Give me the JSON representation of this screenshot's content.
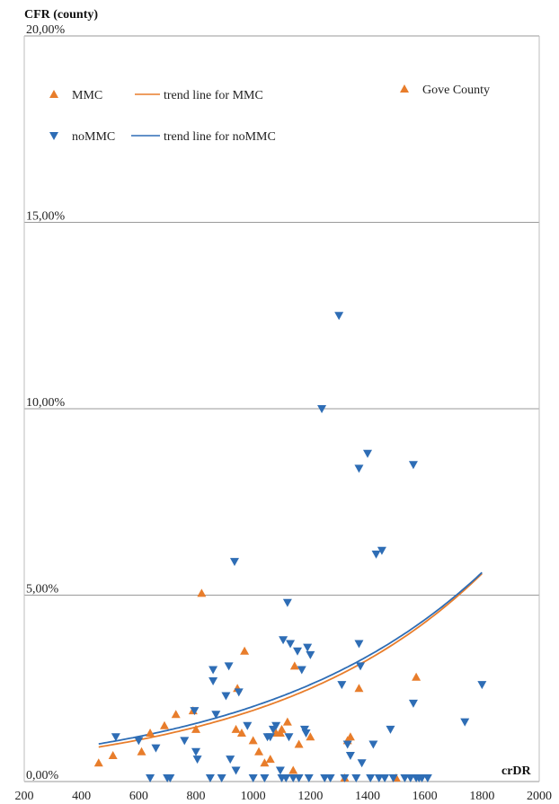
{
  "chart_data": {
    "type": "scatter",
    "ylabel": "CFR (county)",
    "xlabel": "crDR",
    "xlim": [
      200,
      2000
    ],
    "ylim": [
      0,
      20
    ],
    "x_ticks": [
      {
        "value": 200,
        "label": "200"
      },
      {
        "value": 400,
        "label": "400"
      },
      {
        "value": 600,
        "label": "600"
      },
      {
        "value": 800,
        "label": "800"
      },
      {
        "value": 1000,
        "label": "1000"
      },
      {
        "value": 1200,
        "label": "1200"
      },
      {
        "value": 1400,
        "label": "1400"
      },
      {
        "value": 1600,
        "label": "1600"
      },
      {
        "value": 1800,
        "label": "1800"
      },
      {
        "value": 2000,
        "label": "2000"
      }
    ],
    "y_ticks": [
      {
        "value": 0,
        "label": "0,00%"
      },
      {
        "value": 5,
        "label": "5,00%"
      },
      {
        "value": 10,
        "label": "10,00%"
      },
      {
        "value": 15,
        "label": "15,00%"
      },
      {
        "value": 20,
        "label": "20,00%"
      }
    ],
    "grid": "horizontal",
    "legend": [
      {
        "label": "MMC",
        "series": "MMC",
        "kind": "marker"
      },
      {
        "label": "trend line for MMC",
        "series": "MMC",
        "kind": "line"
      },
      {
        "label": "noMMC",
        "series": "noMMC",
        "kind": "marker"
      },
      {
        "label": "trend line for noMMC",
        "series": "noMMC",
        "kind": "line"
      },
      {
        "label": "Gove County",
        "series": "MMC",
        "kind": "marker"
      }
    ],
    "series": [
      {
        "name": "MMC",
        "marker": "triangle-up",
        "color": "#E87D2B",
        "points": [
          [
            460,
            0.5
          ],
          [
            510,
            0.7
          ],
          [
            610,
            0.8
          ],
          [
            640,
            1.3
          ],
          [
            690,
            1.5
          ],
          [
            730,
            1.8
          ],
          [
            790,
            1.9
          ],
          [
            800,
            1.4
          ],
          [
            820,
            5.05
          ],
          [
            940,
            1.4
          ],
          [
            945,
            2.5
          ],
          [
            960,
            1.3
          ],
          [
            970,
            3.5
          ],
          [
            1000,
            1.1
          ],
          [
            1020,
            0.8
          ],
          [
            1040,
            0.5
          ],
          [
            1060,
            0.6
          ],
          [
            1080,
            1.3
          ],
          [
            1095,
            1.3
          ],
          [
            1100,
            1.4
          ],
          [
            1120,
            1.6
          ],
          [
            1140,
            0.3
          ],
          [
            1145,
            3.1
          ],
          [
            1160,
            1.0
          ],
          [
            1200,
            1.2
          ],
          [
            1320,
            0.05
          ],
          [
            1330,
            1.1
          ],
          [
            1340,
            1.2
          ],
          [
            1370,
            2.5
          ],
          [
            1500,
            0.05
          ],
          [
            1570,
            2.8
          ]
        ]
      },
      {
        "name": "noMMC",
        "marker": "triangle-down",
        "color": "#2E6DB5",
        "points": [
          [
            520,
            1.2
          ],
          [
            600,
            1.1
          ],
          [
            640,
            0.05
          ],
          [
            660,
            0.9
          ],
          [
            700,
            0.05
          ],
          [
            710,
            0.05
          ],
          [
            760,
            1.1
          ],
          [
            795,
            1.9
          ],
          [
            800,
            0.8
          ],
          [
            805,
            0.6
          ],
          [
            850,
            0.05
          ],
          [
            860,
            3.0
          ],
          [
            860,
            2.7
          ],
          [
            870,
            1.8
          ],
          [
            890,
            0.05
          ],
          [
            905,
            2.3
          ],
          [
            915,
            3.1
          ],
          [
            920,
            0.6
          ],
          [
            935,
            5.9
          ],
          [
            940,
            0.3
          ],
          [
            950,
            2.4
          ],
          [
            980,
            1.5
          ],
          [
            1000,
            0.05
          ],
          [
            1040,
            0.05
          ],
          [
            1050,
            1.2
          ],
          [
            1060,
            1.2
          ],
          [
            1070,
            1.4
          ],
          [
            1080,
            1.5
          ],
          [
            1095,
            0.3
          ],
          [
            1100,
            0.05
          ],
          [
            1105,
            3.8
          ],
          [
            1115,
            0.05
          ],
          [
            1120,
            4.8
          ],
          [
            1125,
            1.2
          ],
          [
            1130,
            3.7
          ],
          [
            1140,
            0.05
          ],
          [
            1155,
            3.5
          ],
          [
            1160,
            0.05
          ],
          [
            1170,
            3.0
          ],
          [
            1180,
            1.4
          ],
          [
            1185,
            1.3
          ],
          [
            1190,
            3.6
          ],
          [
            1195,
            0.05
          ],
          [
            1200,
            3.4
          ],
          [
            1240,
            10.0
          ],
          [
            1250,
            0.05
          ],
          [
            1270,
            0.05
          ],
          [
            1300,
            12.5
          ],
          [
            1310,
            2.6
          ],
          [
            1320,
            0.05
          ],
          [
            1330,
            1.0
          ],
          [
            1340,
            0.7
          ],
          [
            1360,
            0.05
          ],
          [
            1370,
            8.4
          ],
          [
            1370,
            3.7
          ],
          [
            1375,
            3.1
          ],
          [
            1380,
            0.5
          ],
          [
            1400,
            8.8
          ],
          [
            1410,
            0.05
          ],
          [
            1420,
            1.0
          ],
          [
            1430,
            6.1
          ],
          [
            1440,
            0.05
          ],
          [
            1450,
            6.2
          ],
          [
            1460,
            0.05
          ],
          [
            1480,
            1.4
          ],
          [
            1490,
            0.05
          ],
          [
            1530,
            0.05
          ],
          [
            1550,
            0.05
          ],
          [
            1560,
            8.5
          ],
          [
            1560,
            2.1
          ],
          [
            1570,
            0.05
          ],
          [
            1580,
            0.05
          ],
          [
            1590,
            0.05
          ],
          [
            1610,
            0.05
          ],
          [
            1740,
            1.6
          ],
          [
            1800,
            2.6
          ]
        ]
      }
    ],
    "trend_lines": [
      {
        "series": "MMC",
        "type": "exponential",
        "a": 0.5,
        "b": 0.00134,
        "x_range": [
          460,
          1800
        ],
        "color": "#E87D2B"
      },
      {
        "series": "noMMC",
        "type": "exponential",
        "a": 0.56,
        "b": 0.00128,
        "x_range": [
          460,
          1800
        ],
        "color": "#2E6DB5"
      }
    ],
    "annotations": [
      {
        "text": "Gove County",
        "series": "MMC",
        "point": [
          820,
          5.05
        ]
      }
    ]
  }
}
